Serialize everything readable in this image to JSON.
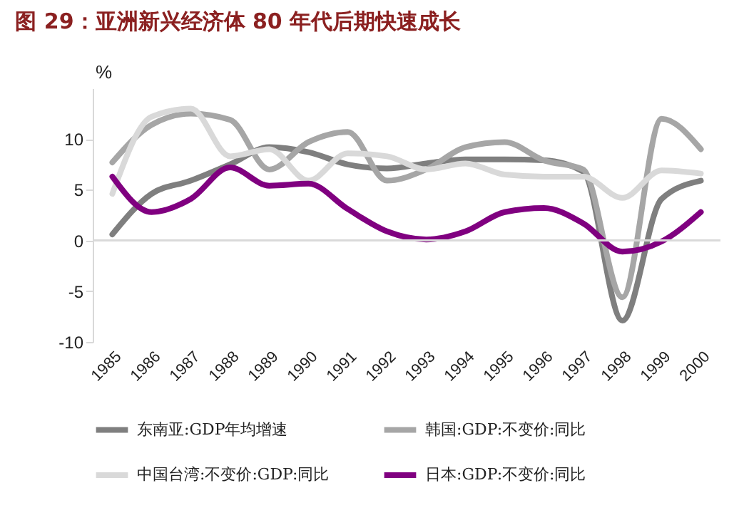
{
  "chart_data": {
    "type": "line",
    "title": "图 29：亚洲新兴经济体 80 年代后期快速成长",
    "ylabel": "%",
    "categories": [
      "1985",
      "1986",
      "1987",
      "1988",
      "1989",
      "1990",
      "1991",
      "1992",
      "1993",
      "1994",
      "1995",
      "1996",
      "1997",
      "1998",
      "1999",
      "2000"
    ],
    "series": [
      {
        "name": "东南亚:GDP年均增速",
        "color": "#7f7f7f",
        "values": [
          0.6,
          4.6,
          5.9,
          7.5,
          9.2,
          8.7,
          7.5,
          7.1,
          7.6,
          8.0,
          8.0,
          7.9,
          6.8,
          -7.9,
          4.1,
          5.9
        ]
      },
      {
        "name": "韩国:GDP:不变价:同比",
        "color": "#a6a6a6",
        "values": [
          7.7,
          11.4,
          12.5,
          11.9,
          7.0,
          9.7,
          10.7,
          5.9,
          7.0,
          9.2,
          9.7,
          7.9,
          7.0,
          -5.6,
          12.0,
          9.0
        ]
      },
      {
        "name": "中国台湾:不变价:GDP:同比",
        "color": "#d9d9d9",
        "values": [
          4.6,
          12.2,
          13.0,
          8.3,
          9.0,
          5.9,
          8.6,
          8.3,
          7.0,
          7.6,
          6.5,
          6.3,
          6.3,
          4.2,
          6.9,
          6.6
        ]
      },
      {
        "name": "日本:GDP:不变价:同比",
        "color": "#800080",
        "values": [
          6.3,
          2.8,
          4.1,
          7.2,
          5.4,
          5.6,
          3.1,
          0.9,
          0.1,
          0.9,
          2.8,
          3.2,
          1.7,
          -1.1,
          -0.1,
          2.8
        ]
      }
    ],
    "ylim": [
      -10,
      15
    ],
    "yticks": [
      -10,
      -5,
      0,
      5,
      10
    ],
    "ref_lines": [
      {
        "axis": "y",
        "value": 0,
        "color": "#d9d9d9"
      }
    ],
    "grid": false,
    "legend": "bottom",
    "marker": "none",
    "line_style": "solid"
  }
}
